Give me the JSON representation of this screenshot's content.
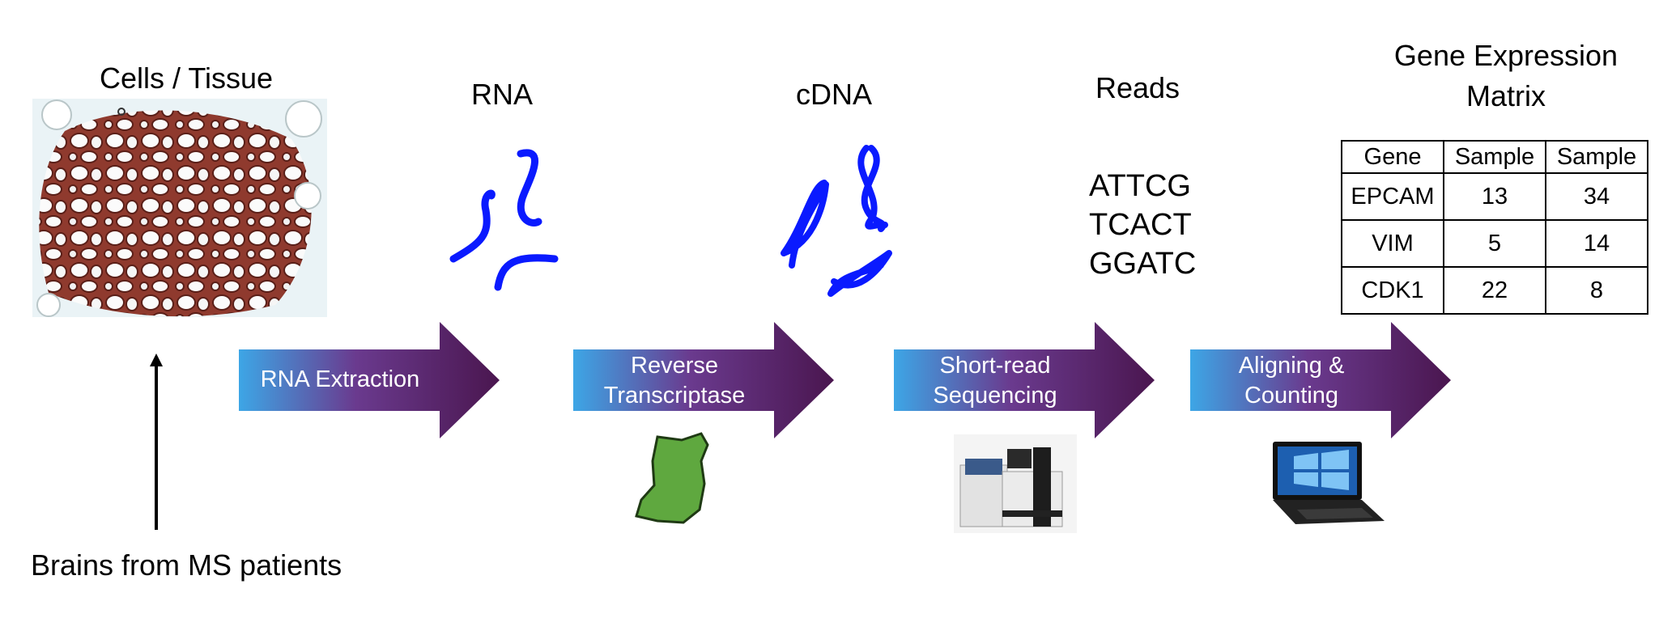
{
  "stages": {
    "cells": "Cells / Tissue",
    "rna": "RNA",
    "cdna": "cDNA",
    "reads": "Reads",
    "matrix_line1": "Gene Expression",
    "matrix_line2": "Matrix"
  },
  "source_label": "Brains from MS patients",
  "steps": [
    {
      "line1": "RNA Extraction"
    },
    {
      "line1": "Reverse",
      "line2": "Transcriptase"
    },
    {
      "line1": "Short-read",
      "line2": "Sequencing"
    },
    {
      "line1": "Aligning &",
      "line2": "Counting"
    }
  ],
  "reads": [
    "ATTCG",
    "TCACT",
    "GGATC"
  ],
  "matrix": {
    "headers": [
      "Gene",
      "Sample",
      "Sample"
    ],
    "rows": [
      [
        "EPCAM",
        "13",
        "34"
      ],
      [
        "VIM",
        "5",
        "14"
      ],
      [
        "CDK1",
        "22",
        "8"
      ]
    ]
  },
  "colors": {
    "strand": "#0a1aff",
    "arrow_start": "#3aa0e0",
    "arrow_mid": "#5a2a8a",
    "arrow_end": "#4a1a5a",
    "enzyme": "#5fa83f",
    "tissue": "#8a3028"
  }
}
